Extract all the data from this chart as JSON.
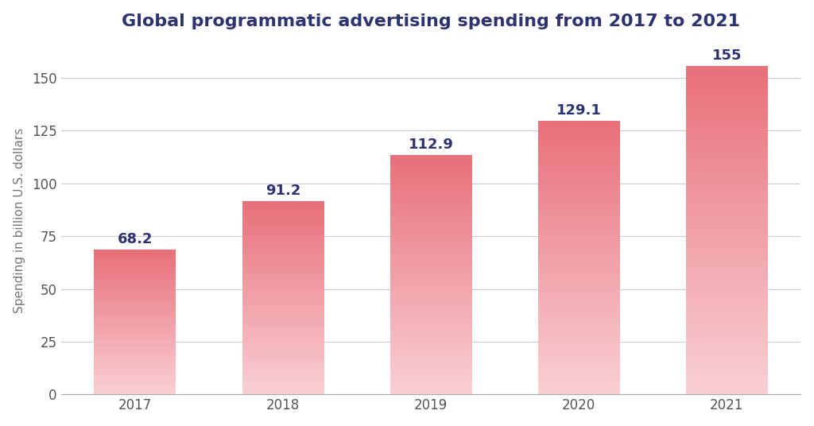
{
  "title": "Global programmatic advertising spending from 2017 to 2021",
  "ylabel": "Spending in billion U.S. dollars",
  "categories": [
    "2017",
    "2018",
    "2019",
    "2020",
    "2021"
  ],
  "values": [
    68.2,
    91.2,
    112.9,
    129.1,
    155
  ],
  "bar_color_top": "#e8707a",
  "bar_color_bottom": "#f9d0d5",
  "label_color": "#2d3270",
  "background_color": "#ffffff",
  "ylim": [
    0,
    165
  ],
  "yticks": [
    0,
    25,
    50,
    75,
    100,
    125,
    150
  ],
  "title_fontsize": 16,
  "label_fontsize": 13,
  "tick_fontsize": 12,
  "ylabel_fontsize": 11,
  "bar_width": 0.55
}
